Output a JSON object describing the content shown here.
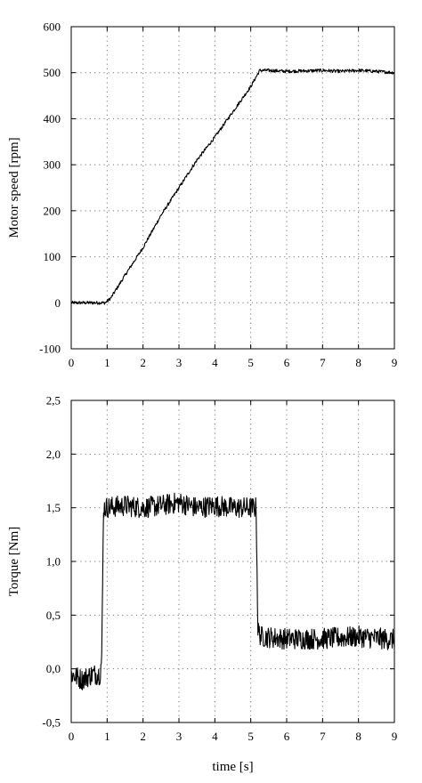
{
  "chart_data": [
    {
      "type": "line",
      "ylabel": "Motor speed [rpm]",
      "xlabel": "",
      "xlim": [
        0,
        9
      ],
      "ylim": [
        -100,
        600
      ],
      "x_ticks": [
        0,
        1,
        2,
        3,
        4,
        5,
        6,
        7,
        8,
        9
      ],
      "x_tick_labels": [
        "0",
        "1",
        "2",
        "3",
        "4",
        "5",
        "6",
        "7",
        "8",
        "9"
      ],
      "y_ticks": [
        -100,
        0,
        100,
        200,
        300,
        400,
        500,
        600
      ],
      "y_tick_labels": [
        "-100",
        "0",
        "100",
        "200",
        "300",
        "400",
        "500",
        "600"
      ],
      "grid": true,
      "series": [
        {
          "x": [
            0,
            0.5,
            0.95,
            1.1,
            1.5,
            2.0,
            2.5,
            3.0,
            3.5,
            4.0,
            4.5,
            5.0,
            5.25,
            5.5,
            6.0,
            6.5,
            7.0,
            7.5,
            8.0,
            8.5,
            9.0
          ],
          "values": [
            0,
            0,
            0,
            10,
            60,
            120,
            190,
            250,
            310,
            360,
            415,
            470,
            505,
            505,
            503,
            504,
            505,
            503,
            505,
            503,
            500
          ],
          "noise": 3.5
        }
      ]
    },
    {
      "type": "line",
      "ylabel": "Torque [Nm]",
      "xlabel": "time [s]",
      "xlim": [
        0,
        9
      ],
      "ylim": [
        -0.5,
        2.5
      ],
      "x_ticks": [
        0,
        1,
        2,
        3,
        4,
        5,
        6,
        7,
        8,
        9
      ],
      "x_tick_labels": [
        "0",
        "1",
        "2",
        "3",
        "4",
        "5",
        "6",
        "7",
        "8",
        "9"
      ],
      "y_ticks": [
        -0.5,
        0.0,
        0.5,
        1.0,
        1.5,
        2.0,
        2.5
      ],
      "y_tick_labels": [
        "-0,5",
        "0,0",
        "0,5",
        "1,0",
        "1,5",
        "2,0",
        "2,5"
      ],
      "grid": true,
      "series": [
        {
          "x": [
            0,
            0.3,
            0.6,
            0.8,
            0.85,
            0.9,
            1.5,
            2.0,
            2.5,
            3.0,
            3.5,
            4.0,
            4.5,
            5.0,
            5.15,
            5.2,
            5.3,
            6.0,
            7.0,
            8.0,
            9.0
          ],
          "values": [
            -0.05,
            -0.1,
            -0.05,
            -0.05,
            0.1,
            1.5,
            1.52,
            1.5,
            1.52,
            1.55,
            1.5,
            1.52,
            1.5,
            1.5,
            1.5,
            0.35,
            0.3,
            0.28,
            0.28,
            0.3,
            0.27
          ],
          "noise": 0.1
        }
      ]
    }
  ]
}
